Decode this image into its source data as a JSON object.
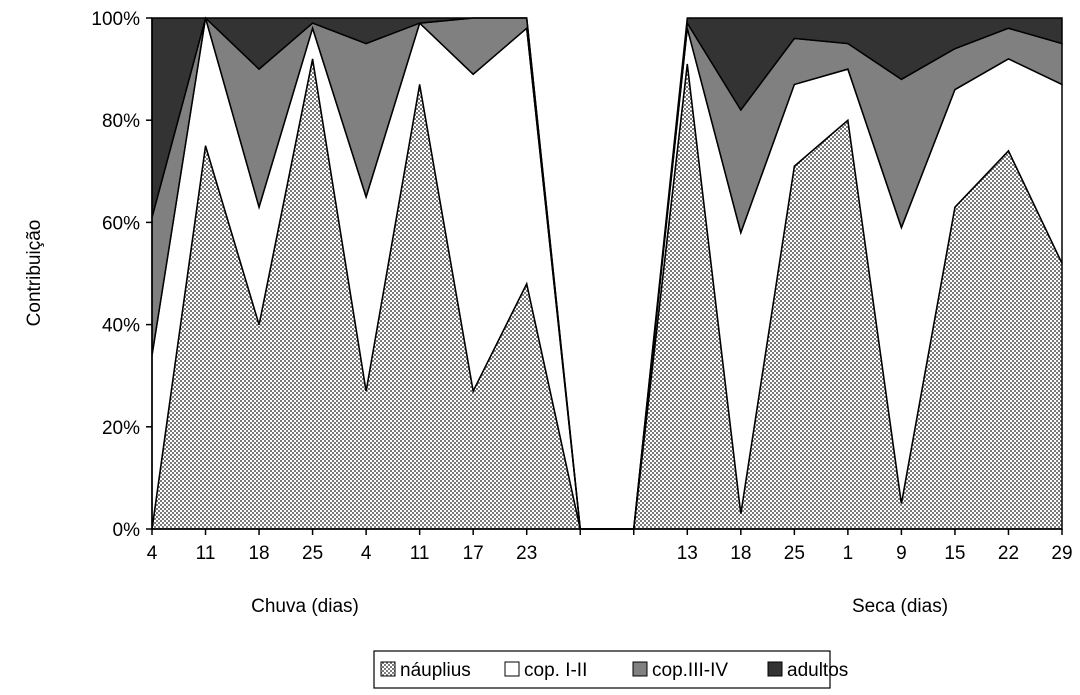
{
  "chart_data": {
    "type": "area",
    "stacked": "percent",
    "title": "",
    "ylabel": "Contribuição",
    "ylim": [
      0,
      100
    ],
    "yticks": [
      "0%",
      "20%",
      "40%",
      "60%",
      "80%",
      "100%"
    ],
    "x": [
      "4",
      "11",
      "18",
      "25",
      "4",
      "11",
      "17",
      "23",
      "",
      "",
      "13",
      "18",
      "25",
      "1",
      "9",
      "15",
      "22",
      "29"
    ],
    "group_labels": [
      "Chuva (dias)",
      "Seca (dias)"
    ],
    "series": [
      {
        "name": "náuplius",
        "color": "#9a9a9a",
        "pattern": "checker",
        "values": [
          0,
          75,
          40,
          92,
          27,
          87,
          27,
          48,
          0,
          0,
          91,
          3,
          71,
          80,
          5,
          63,
          74,
          52
        ]
      },
      {
        "name": "cop. I-II",
        "color": "#ffffff",
        "values": [
          34,
          25,
          23,
          6,
          38,
          12,
          62,
          50,
          0,
          0,
          7,
          55,
          16,
          10,
          54,
          23,
          18,
          35
        ]
      },
      {
        "name": "cop.III-IV",
        "color": "#808080",
        "values": [
          27,
          0,
          27,
          1,
          30,
          0,
          11,
          2,
          0,
          0,
          1,
          24,
          9,
          5,
          29,
          8,
          6,
          8
        ]
      },
      {
        "name": "adultos",
        "color": "#333333",
        "values": [
          39,
          0,
          10,
          1,
          5,
          1,
          0,
          0,
          0,
          0,
          1,
          18,
          4,
          5,
          12,
          6,
          2,
          5
        ]
      }
    ],
    "grid": false,
    "legend_position": "bottom"
  }
}
